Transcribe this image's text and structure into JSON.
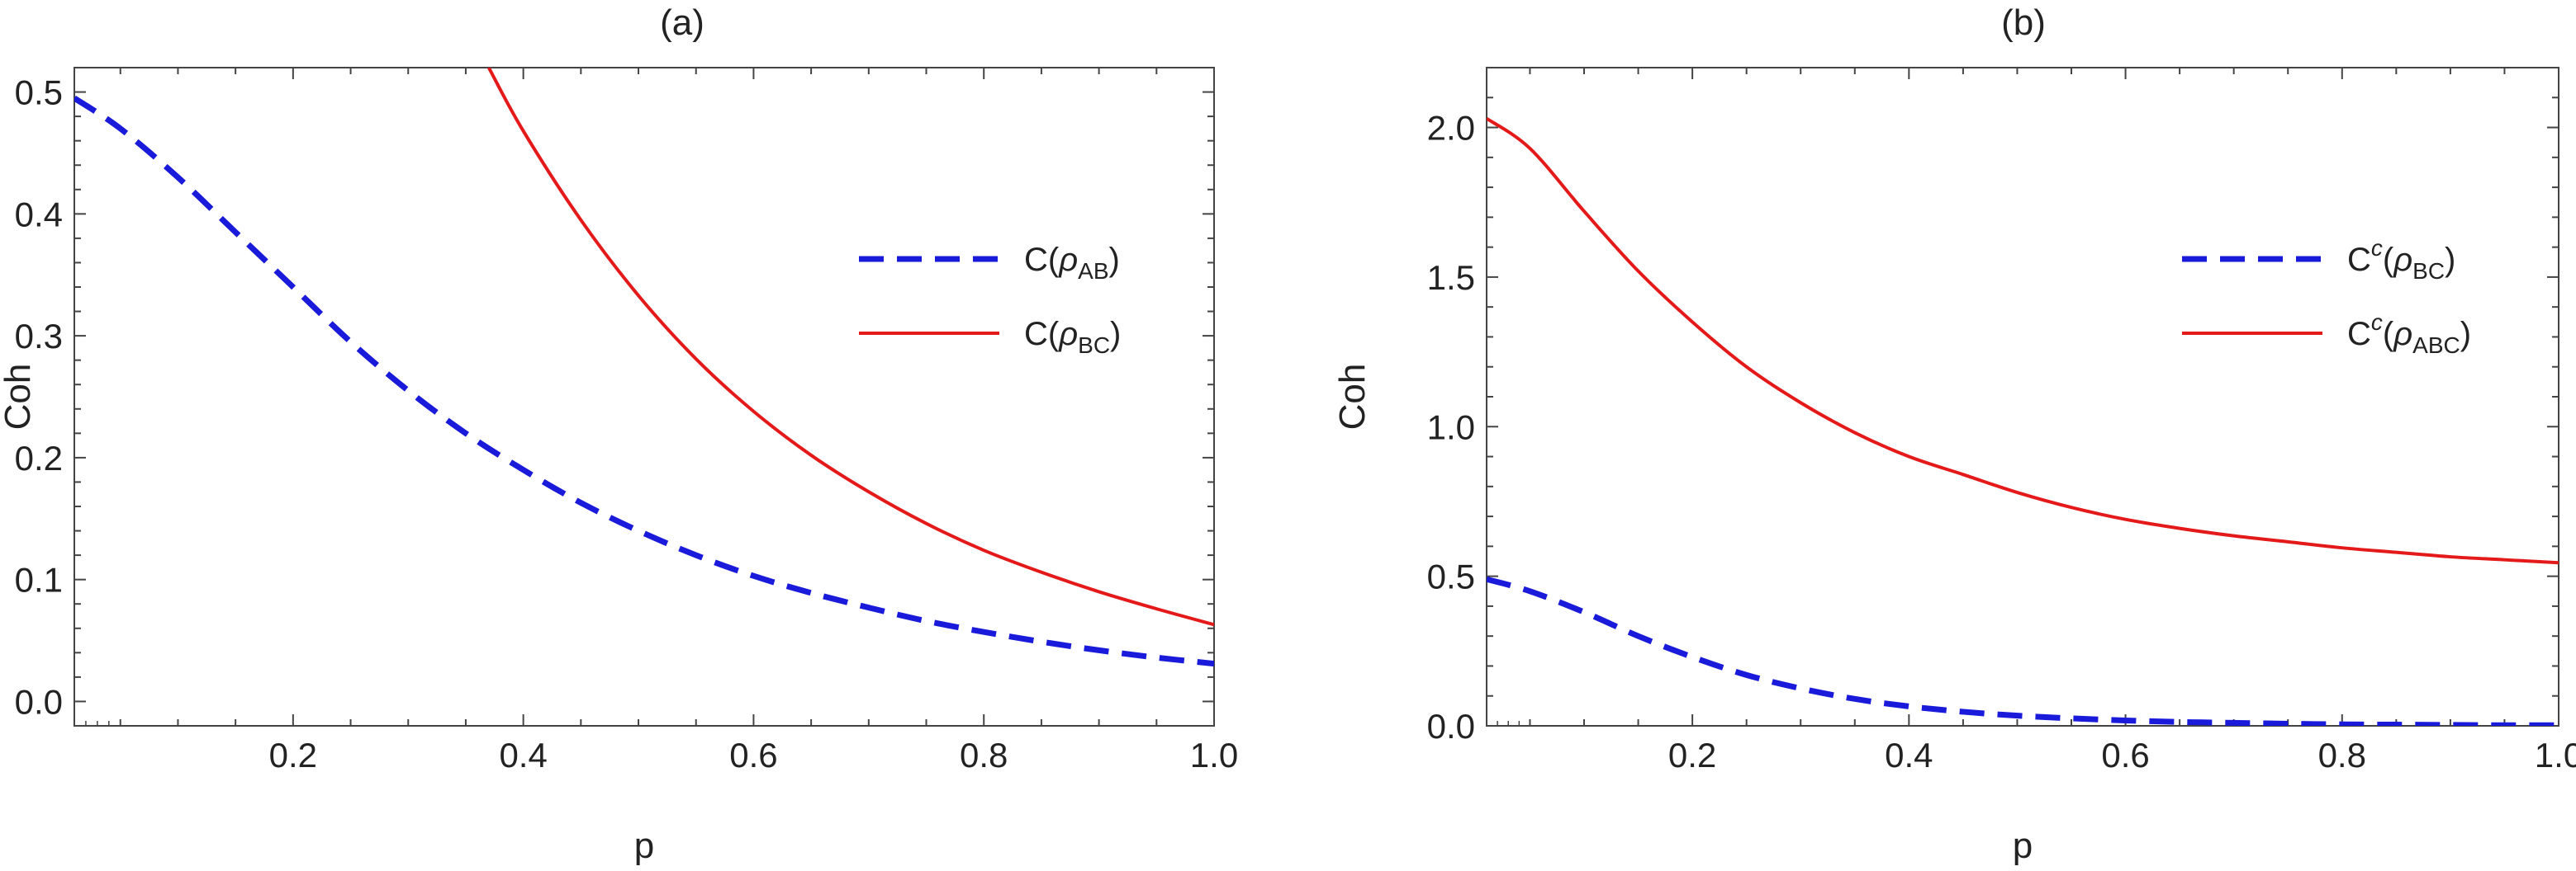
{
  "chart_data": [
    {
      "type": "line",
      "title": "(a)",
      "xlabel": "p",
      "ylabel": "Coh",
      "xlim": [
        0.01,
        1.0
      ],
      "ylim": [
        -0.02,
        0.52
      ],
      "xticks": [
        0.2,
        0.4,
        0.6,
        0.8,
        1.0
      ],
      "xtick_labels": [
        "0.2",
        "0.4",
        "0.6",
        "0.8",
        "1.0"
      ],
      "yticks": [
        0.0,
        0.1,
        0.2,
        0.3,
        0.4,
        0.5
      ],
      "ytick_labels": [
        "0.0",
        "0.1",
        "0.2",
        "0.3",
        "0.4",
        "0.5"
      ],
      "legend_position": "right-middle",
      "series": [
        {
          "name": "C(ρAB)",
          "legend": {
            "main": "C(",
            "rho": "ρ",
            "sub": "AB",
            "close": ")"
          },
          "color": "#1a1adb",
          "style": "dashed",
          "x": [
            0.01,
            0.05,
            0.1,
            0.15,
            0.2,
            0.25,
            0.3,
            0.35,
            0.4,
            0.45,
            0.5,
            0.55,
            0.6,
            0.65,
            0.7,
            0.75,
            0.8,
            0.85,
            0.9,
            0.95,
            1.0
          ],
          "y": [
            0.495,
            0.47,
            0.43,
            0.385,
            0.34,
            0.295,
            0.255,
            0.22,
            0.19,
            0.163,
            0.14,
            0.12,
            0.103,
            0.089,
            0.077,
            0.066,
            0.057,
            0.049,
            0.042,
            0.036,
            0.031
          ]
        },
        {
          "name": "C(ρBC)",
          "legend": {
            "main": "C(",
            "rho": "ρ",
            "sub": "BC",
            "close": ")"
          },
          "color": "#e41a1a",
          "style": "solid",
          "x": [
            0.37,
            0.4,
            0.45,
            0.5,
            0.55,
            0.6,
            0.65,
            0.7,
            0.75,
            0.8,
            0.85,
            0.9,
            0.95,
            1.0
          ],
          "y": [
            0.52,
            0.468,
            0.395,
            0.333,
            0.281,
            0.238,
            0.202,
            0.172,
            0.146,
            0.124,
            0.106,
            0.09,
            0.076,
            0.063
          ]
        }
      ]
    },
    {
      "type": "line",
      "title": "(b)",
      "xlabel": "p",
      "ylabel": "Coh",
      "xlim": [
        0.01,
        1.0
      ],
      "ylim": [
        0.0,
        2.2
      ],
      "xticks": [
        0.2,
        0.4,
        0.6,
        0.8,
        1.0
      ],
      "xtick_labels": [
        "0.2",
        "0.4",
        "0.6",
        "0.8",
        "1.0"
      ],
      "yticks": [
        0.0,
        0.5,
        1.0,
        1.5,
        2.0
      ],
      "ytick_labels": [
        "0.0",
        "0.5",
        "1.0",
        "1.5",
        "2.0"
      ],
      "legend_position": "top-right",
      "series": [
        {
          "name": "Cc(ρBC)",
          "legend": {
            "main": "C",
            "sup": "c",
            "open": "(",
            "rho": "ρ",
            "sub": "BC",
            "close": ")"
          },
          "color": "#1a1adb",
          "style": "dashed",
          "x": [
            0.01,
            0.05,
            0.1,
            0.15,
            0.2,
            0.25,
            0.3,
            0.35,
            0.4,
            0.45,
            0.5,
            0.55,
            0.6,
            0.65,
            0.7,
            0.75,
            0.8,
            0.85,
            0.9,
            0.95,
            1.0
          ],
          "y": [
            0.49,
            0.45,
            0.38,
            0.3,
            0.23,
            0.17,
            0.125,
            0.09,
            0.065,
            0.047,
            0.034,
            0.025,
            0.018,
            0.013,
            0.01,
            0.007,
            0.005,
            0.004,
            0.003,
            0.002,
            0.002
          ]
        },
        {
          "name": "Cc(ρABC)",
          "legend": {
            "main": "C",
            "sup": "c",
            "open": "(",
            "rho": "ρ",
            "sub": "ABC",
            "close": ")"
          },
          "color": "#e41a1a",
          "style": "solid",
          "x": [
            0.01,
            0.05,
            0.1,
            0.15,
            0.2,
            0.25,
            0.3,
            0.35,
            0.4,
            0.45,
            0.5,
            0.55,
            0.6,
            0.65,
            0.7,
            0.75,
            0.8,
            0.85,
            0.9,
            0.95,
            1.0
          ],
          "y": [
            2.03,
            1.93,
            1.72,
            1.52,
            1.35,
            1.2,
            1.08,
            0.98,
            0.9,
            0.84,
            0.78,
            0.73,
            0.69,
            0.66,
            0.635,
            0.615,
            0.595,
            0.58,
            0.565,
            0.555,
            0.545
          ]
        }
      ]
    }
  ]
}
